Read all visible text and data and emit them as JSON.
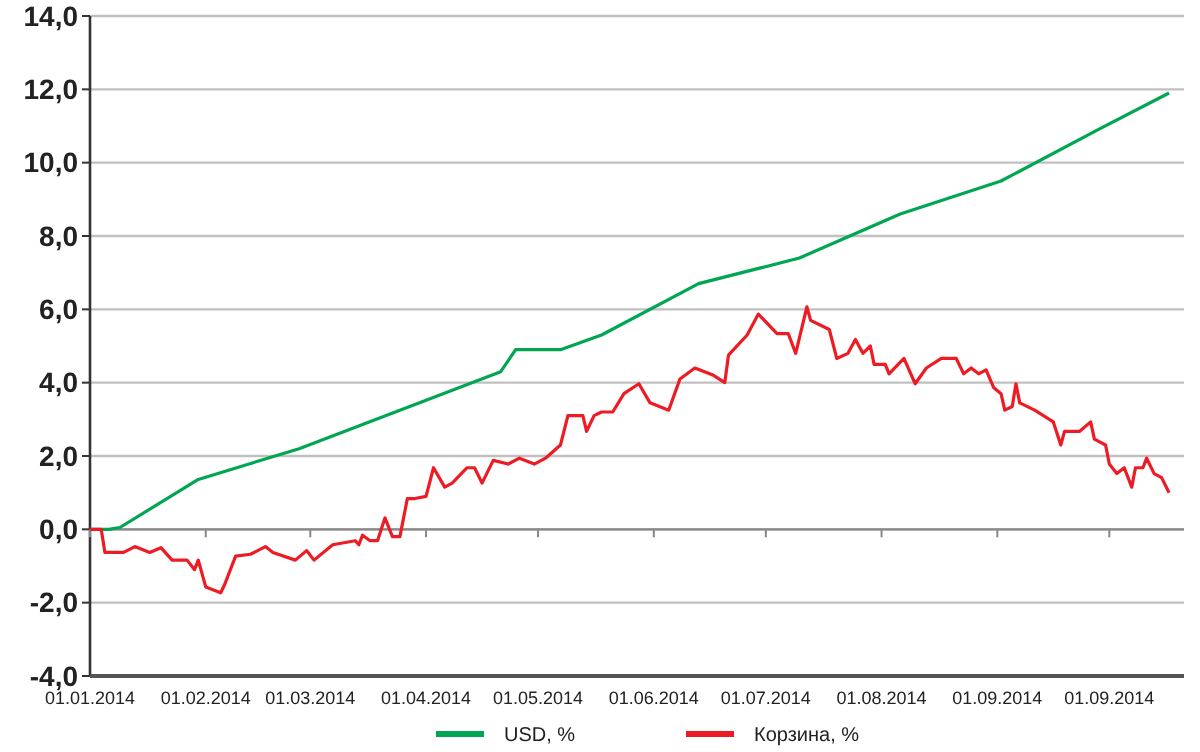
{
  "chart_data": {
    "type": "line",
    "xlim": [
      "2014-01-01",
      "2014-10-21"
    ],
    "ylim": [
      -4,
      14
    ],
    "xticks": [
      {
        "value": "2014-01-01",
        "label": "01.01.2014"
      },
      {
        "value": "2014-02-01",
        "label": "01.02.2014"
      },
      {
        "value": "2014-03-01",
        "label": "01.03.2014"
      },
      {
        "value": "2014-04-01",
        "label": "01.04.2014"
      },
      {
        "value": "2014-05-01",
        "label": "01.05.2014"
      },
      {
        "value": "2014-06-01",
        "label": "01.06.2014"
      },
      {
        "value": "2014-07-01",
        "label": "01.07.2014"
      },
      {
        "value": "2014-08-01",
        "label": "01.08.2014"
      },
      {
        "value": "2014-09-01",
        "label": "01.09.2014"
      },
      {
        "value": "2014-10-01",
        "label": "01.09.2014"
      }
    ],
    "yticks": [
      {
        "value": -4,
        "label": "-4,0"
      },
      {
        "value": -2,
        "label": "-2,0"
      },
      {
        "value": 0,
        "label": "0,0"
      },
      {
        "value": 2,
        "label": "2,0"
      },
      {
        "value": 4,
        "label": "4,0"
      },
      {
        "value": 6,
        "label": "6,0"
      },
      {
        "value": 8,
        "label": "8,0"
      },
      {
        "value": 10,
        "label": "10,0"
      },
      {
        "value": 12,
        "label": "12,0"
      },
      {
        "value": 14,
        "label": "14,0"
      }
    ],
    "grid": "y",
    "legend": "bottom",
    "marker": "none",
    "line_style": "solid",
    "series": [
      {
        "name": "USD, %",
        "color": "#00a651",
        "x": [
          "2014-01-01",
          "2014-01-06",
          "2014-01-09",
          "2014-01-30",
          "2014-02-26",
          "2014-03-25",
          "2014-04-21",
          "2014-04-25",
          "2014-05-07",
          "2014-05-18",
          "2014-06-13",
          "2014-07-10",
          "2014-08-06",
          "2014-09-02",
          "2014-09-28",
          "2014-10-17"
        ],
        "values": [
          0,
          0,
          0.05,
          1.36,
          2.2,
          3.25,
          4.3,
          4.9,
          4.9,
          5.3,
          6.7,
          7.4,
          8.6,
          9.5,
          10.9,
          11.9
        ]
      },
      {
        "name": "Корзина, %",
        "color": "#ed1c24",
        "x": [
          "2014-01-01",
          "2014-01-04",
          "2014-01-05",
          "2014-01-10",
          "2014-01-13",
          "2014-01-17",
          "2014-01-20",
          "2014-01-23",
          "2014-01-27",
          "2014-01-29",
          "2014-01-30",
          "2014-02-01",
          "2014-02-05",
          "2014-02-06",
          "2014-02-09",
          "2014-02-13",
          "2014-02-17",
          "2014-02-19",
          "2014-02-25",
          "2014-02-28",
          "2014-03-02",
          "2014-03-07",
          "2014-03-13",
          "2014-03-14",
          "2014-03-15",
          "2014-03-17",
          "2014-03-19",
          "2014-03-21",
          "2014-03-23",
          "2014-03-25",
          "2014-03-27",
          "2014-03-29",
          "2014-04-01",
          "2014-04-03",
          "2014-04-06",
          "2014-04-08",
          "2014-04-12",
          "2014-04-14",
          "2014-04-16",
          "2014-04-19",
          "2014-04-23",
          "2014-04-26",
          "2014-04-30",
          "2014-05-03",
          "2014-05-07",
          "2014-05-09",
          "2014-05-13",
          "2014-05-14",
          "2014-05-16",
          "2014-05-18",
          "2014-05-21",
          "2014-05-24",
          "2014-05-28",
          "2014-05-31",
          "2014-06-05",
          "2014-06-08",
          "2014-06-12",
          "2014-06-17",
          "2014-06-20",
          "2014-06-21",
          "2014-06-26",
          "2014-06-29",
          "2014-07-04",
          "2014-07-07",
          "2014-07-09",
          "2014-07-12",
          "2014-07-13",
          "2014-07-18",
          "2014-07-20",
          "2014-07-23",
          "2014-07-25",
          "2014-07-27",
          "2014-07-29",
          "2014-07-30",
          "2014-08-02",
          "2014-08-03",
          "2014-08-07",
          "2014-08-10",
          "2014-08-13",
          "2014-08-17",
          "2014-08-21",
          "2014-08-23",
          "2014-08-25",
          "2014-08-27",
          "2014-08-29",
          "2014-08-31",
          "2014-09-02",
          "2014-09-03",
          "2014-09-05",
          "2014-09-06",
          "2014-09-07",
          "2014-09-11",
          "2014-09-16",
          "2014-09-18",
          "2014-09-19",
          "2014-09-23",
          "2014-09-26",
          "2014-09-27",
          "2014-09-30",
          "2014-10-01",
          "2014-10-03",
          "2014-10-05",
          "2014-10-07",
          "2014-10-08",
          "2014-10-10",
          "2014-10-11",
          "2014-10-13",
          "2014-10-15",
          "2014-10-17"
        ],
        "values": [
          0,
          0,
          -0.63,
          -0.63,
          -0.47,
          -0.63,
          -0.5,
          -0.84,
          -0.84,
          -1.1,
          -0.84,
          -1.57,
          -1.73,
          -1.52,
          -0.73,
          -0.68,
          -0.47,
          -0.63,
          -0.84,
          -0.58,
          -0.84,
          -0.42,
          -0.31,
          -0.42,
          -0.16,
          -0.31,
          -0.31,
          0.31,
          -0.2,
          -0.2,
          0.84,
          0.84,
          0.9,
          1.68,
          1.15,
          1.26,
          1.68,
          1.68,
          1.26,
          1.88,
          1.78,
          1.94,
          1.78,
          1.94,
          2.3,
          3.1,
          3.1,
          2.67,
          3.1,
          3.2,
          3.2,
          3.7,
          3.97,
          3.45,
          3.25,
          4.1,
          4.4,
          4.2,
          4.0,
          4.75,
          5.3,
          5.87,
          5.34,
          5.34,
          4.8,
          6.07,
          5.7,
          5.45,
          4.66,
          4.8,
          5.18,
          4.8,
          5.0,
          4.5,
          4.5,
          4.24,
          4.66,
          3.97,
          4.4,
          4.66,
          4.66,
          4.24,
          4.4,
          4.24,
          4.35,
          3.87,
          3.7,
          3.25,
          3.35,
          3.97,
          3.45,
          3.25,
          2.93,
          2.3,
          2.67,
          2.67,
          2.93,
          2.46,
          2.3,
          1.78,
          1.52,
          1.68,
          1.15,
          1.68,
          1.68,
          1.94,
          1.52,
          1.41,
          1.0
        ]
      }
    ]
  }
}
